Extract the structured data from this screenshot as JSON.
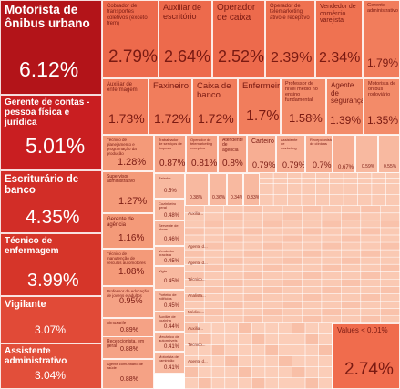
{
  "chart_data": {
    "type": "treemap",
    "unit": "%",
    "items": [
      {
        "label": "Motorista de ônibus urbano",
        "value": 6.12
      },
      {
        "label": "Gerente de contas - pessoa física e jurídica",
        "value": 5.01
      },
      {
        "label": "Escriturário de banco",
        "value": 4.35
      },
      {
        "label": "Técnico de enfermagem",
        "value": 3.99
      },
      {
        "label": "Vigilante",
        "value": 3.07
      },
      {
        "label": "Assistente administrativo",
        "value": 3.04
      },
      {
        "label": "Cobrador de transportes coletivos (exceto trem)",
        "value": 2.79
      },
      {
        "label": "Auxiliar de escritório",
        "value": 2.64
      },
      {
        "label": "Operador de caixa",
        "value": 2.52
      },
      {
        "label": "Operador de telemarketing ativo e receptivo",
        "value": 2.39
      },
      {
        "label": "Vendedor de comércio varejista",
        "value": 2.34
      },
      {
        "label": "Gerente administrativo",
        "value": 1.79
      },
      {
        "label": "Auxiliar de enfermagem",
        "value": 1.73
      },
      {
        "label": "Faxineiro",
        "value": 1.72
      },
      {
        "label": "Caixa de banco",
        "value": 1.72
      },
      {
        "label": "Enfermeiro",
        "value": 1.7
      },
      {
        "label": "Professor de nível médio no ensino fundamental",
        "value": 1.58
      },
      {
        "label": "Agente de segurança",
        "value": 1.39
      },
      {
        "label": "Motorista de ônibus rodoviário",
        "value": 1.35
      },
      {
        "label": "Técnico de planejamento e programação da produção",
        "value": 1.28
      },
      {
        "label": "Supervisor administrativo",
        "value": 1.27
      },
      {
        "label": "Gerente de agência",
        "value": 1.16
      },
      {
        "label": "Técnico de manutenção de veículos automotores",
        "value": 1.08
      },
      {
        "label": "Professor de educação de jovens e adultos",
        "value": 0.95
      },
      {
        "label": "Almoxarife",
        "value": 0.89
      },
      {
        "label": "Recepcionista, em geral",
        "value": 0.88
      },
      {
        "label": "Agente comunitário de saúde",
        "value": 0.88
      },
      {
        "label": "Trabalhador de serviços de limpeza",
        "value": 0.87
      },
      {
        "label": "Operador de telemarketing receptivo",
        "value": 0.81
      },
      {
        "label": "Atendente de agência",
        "value": 0.8
      },
      {
        "label": "Carteiro",
        "value": 0.79
      },
      {
        "label": "Assistente de marketing",
        "value": 0.79
      },
      {
        "label": "Recepcionista de clínicas",
        "value": 0.7
      },
      {
        "label": "",
        "value": 0.67
      },
      {
        "label": "",
        "value": 0.59
      },
      {
        "label": "",
        "value": 0.55
      },
      {
        "label": "Zelador",
        "value": 0.5
      },
      {
        "label": "Cozinheiro geral",
        "value": 0.48
      },
      {
        "label": "Servente de obras",
        "value": 0.46
      },
      {
        "label": "Vendedor pracista",
        "value": 0.45
      },
      {
        "label": "Vigia",
        "value": 0.45
      },
      {
        "label": "Porteiro de edifícios",
        "value": 0.45
      },
      {
        "label": "Auxiliar de cozinha",
        "value": 0.44
      },
      {
        "label": "Mecânico de automóveis",
        "value": 0.41
      },
      {
        "label": "Motorista de caminhão",
        "value": 0.41
      },
      {
        "label": "",
        "value": 0.38
      },
      {
        "label": "",
        "value": 0.36
      },
      {
        "label": "",
        "value": 0.34
      },
      {
        "label": "",
        "value": 0.33
      },
      {
        "label": "Values < 0.01%",
        "value": 2.74
      }
    ],
    "micro_cells": {
      "rows": 16,
      "cols": 11
    }
  },
  "labels": {
    "auxiliar_short": "Auxilia...",
    "agente_short": "Agente d...",
    "tecnico_short": "Técnico...",
    "analista_short": "Analista...",
    "medico_short": "Médico..."
  }
}
